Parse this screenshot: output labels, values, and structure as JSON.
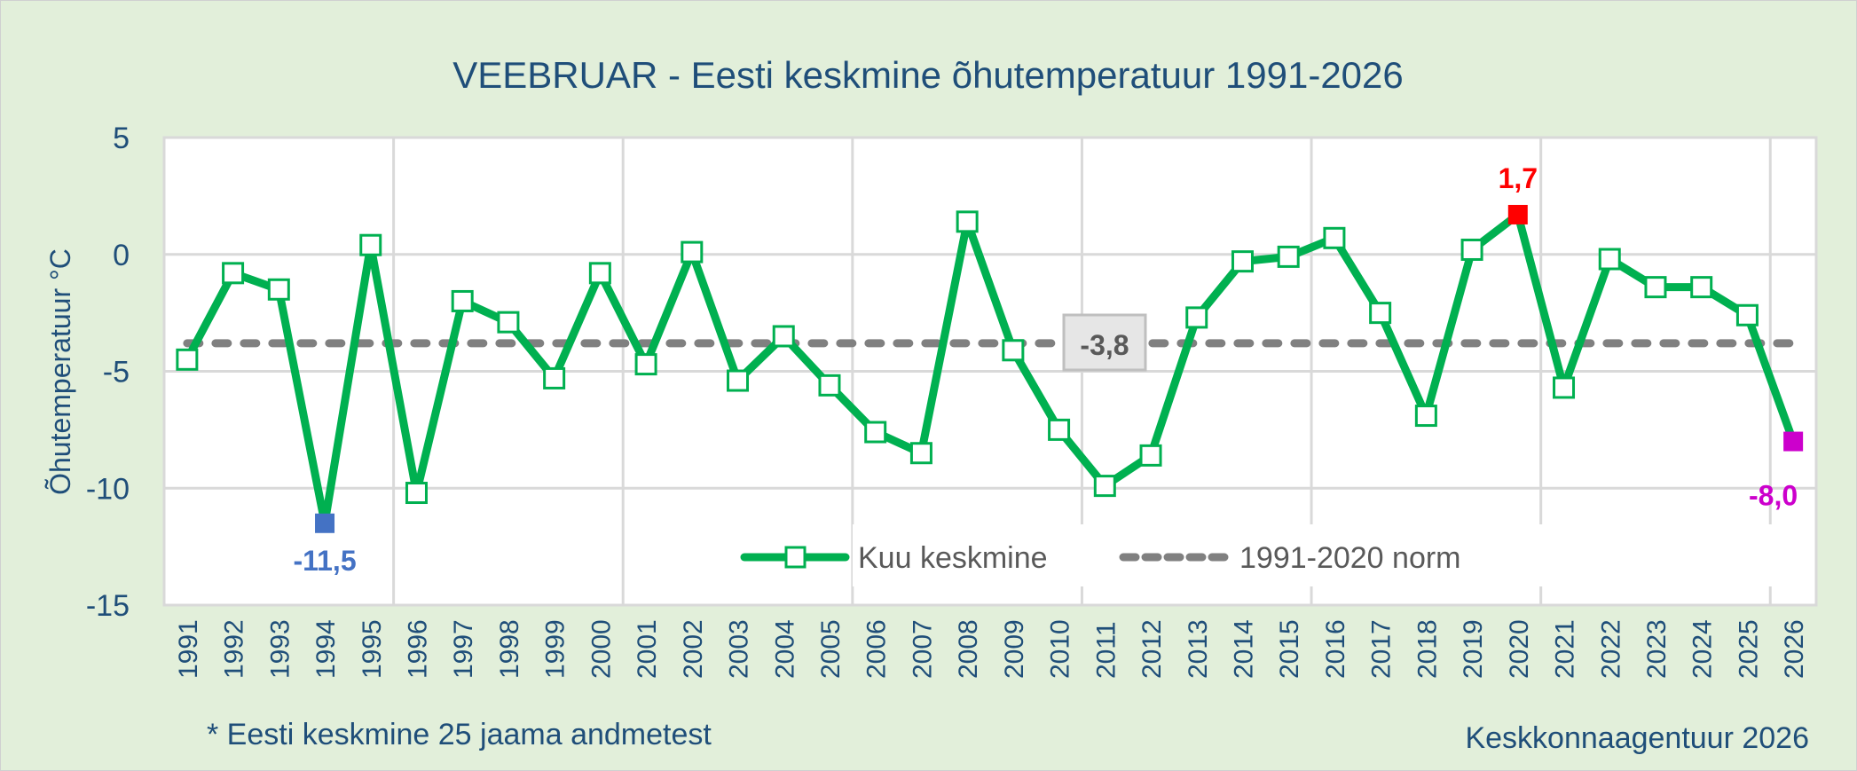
{
  "chart_data": {
    "type": "line",
    "title": "VEEBRUAR - Eesti keskmine õhutemperatuur 1991-2026",
    "xlabel": "",
    "ylabel": "Õhutemperatuur °C",
    "ylim": [
      -15,
      5
    ],
    "yticks": [
      5,
      0,
      -5,
      -10,
      -15
    ],
    "grid": true,
    "legend_position": "inside-bottom",
    "categories": [
      "1991",
      "1992",
      "1993",
      "1994",
      "1995",
      "1996",
      "1997",
      "1998",
      "1999",
      "2000",
      "2001",
      "2002",
      "2003",
      "2004",
      "2005",
      "2006",
      "2007",
      "2008",
      "2009",
      "2010",
      "2011",
      "2012",
      "2013",
      "2014",
      "2015",
      "2016",
      "2017",
      "2018",
      "2019",
      "2020",
      "2021",
      "2022",
      "2023",
      "2024",
      "2025",
      "2026"
    ],
    "series": [
      {
        "name": "Kuu keskmine",
        "color": "#00B050",
        "values": [
          -4.5,
          -0.8,
          -1.5,
          -11.5,
          0.4,
          -10.2,
          -2.0,
          -2.9,
          -5.3,
          -0.8,
          -4.7,
          0.1,
          -5.4,
          -3.5,
          -5.6,
          -7.6,
          -8.5,
          1.4,
          -4.1,
          -7.5,
          -9.9,
          -8.6,
          -2.7,
          -0.3,
          -0.1,
          0.7,
          -2.5,
          -6.9,
          0.2,
          1.7,
          -5.7,
          -0.2,
          -1.4,
          -1.4,
          -2.6,
          -8.0
        ]
      },
      {
        "name": "1991-2020 norm",
        "color": "#808080",
        "dashed": true,
        "value": -3.8
      }
    ],
    "annotations": [
      {
        "year": "1994",
        "label": "-11,5",
        "color": "#4472C4",
        "note": "minimum"
      },
      {
        "year": "2020",
        "label": "1,7",
        "color": "#FF0000",
        "note": "maximum"
      },
      {
        "year": "2026",
        "label": "-8,0",
        "color": "#CC00CC",
        "note": "current"
      },
      {
        "label": "-3,8",
        "color": "#595959",
        "note": "norm label"
      }
    ],
    "footnote_left": "* Eesti keskmine 25 jaama andmetest",
    "footnote_right": "Keskkonnaagentuur 2026"
  },
  "colors": {
    "background": "#E2EFDA",
    "plot": "#FFFFFF",
    "text": "#1F4E79",
    "grid": "#D9D9D9"
  }
}
